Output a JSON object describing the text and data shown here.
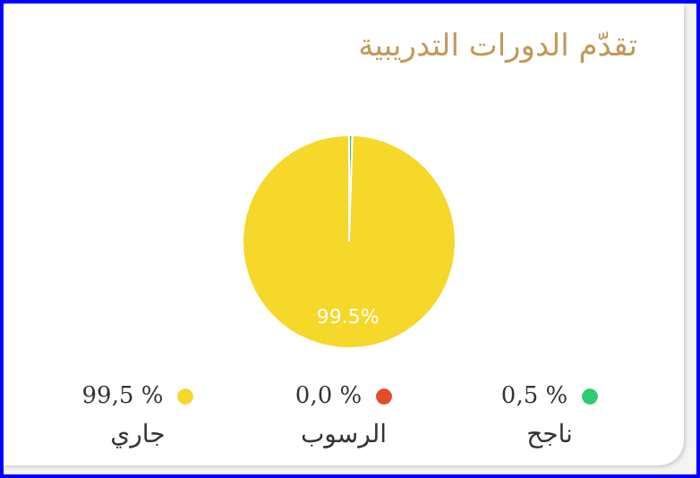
{
  "chart_data": {
    "type": "pie",
    "title": "تقدّم الدورات التدريبية",
    "categories": [
      "ناجح",
      "الرسوب",
      "جاري"
    ],
    "values": [
      0.5,
      0.0,
      99.5
    ],
    "colors": [
      "#2ecc71",
      "#e8482b",
      "#f5d829"
    ],
    "value_labels": [
      "0,5 %",
      "0,0 %",
      "99,5 %"
    ],
    "annotations": [
      {
        "text": "99.5%",
        "x": "جاري"
      }
    ],
    "legend": "bottom"
  }
}
